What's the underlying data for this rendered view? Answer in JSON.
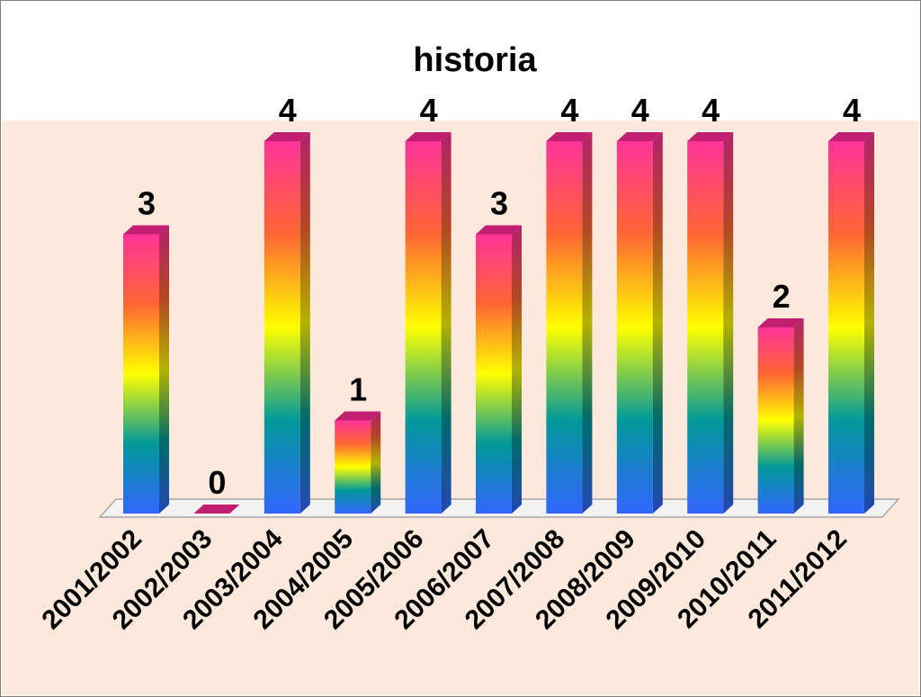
{
  "chart_data": {
    "type": "bar",
    "title": "historia",
    "xlabel": "",
    "ylabel": "",
    "categories": [
      "2001/2002",
      "2002/2003",
      "2003/2004",
      "2004/2005",
      "2005/2006",
      "2006/2007",
      "2007/2008",
      "2008/2009",
      "2009/2010",
      "2010/2011",
      "2011/2012"
    ],
    "values": [
      3,
      0,
      4,
      1,
      4,
      3,
      4,
      4,
      4,
      2,
      4
    ],
    "ylim": [
      0,
      4
    ],
    "grid": false,
    "legend": "none",
    "style": "3d-column-rainbow-gradient"
  },
  "colors": {
    "plot_background": "#fde9db",
    "bar_top": "#ff3399",
    "bar_mid_upper": "#ff6633",
    "bar_mid": "#ffff00",
    "bar_mid_lower": "#009999",
    "bar_bottom": "#3366ff",
    "floor": "#f2f2f2"
  }
}
